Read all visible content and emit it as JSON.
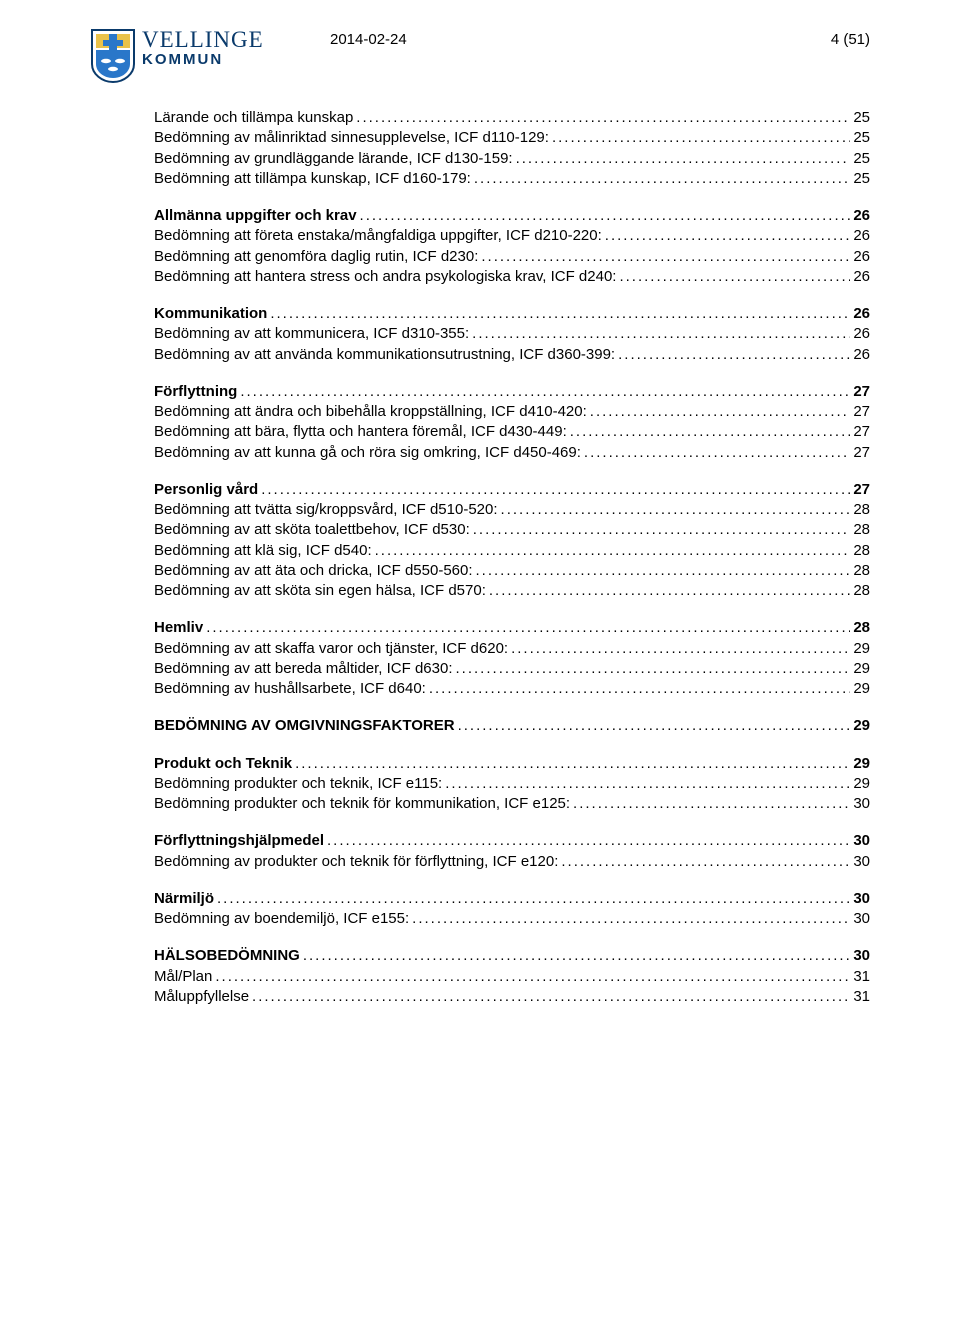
{
  "header": {
    "date": "2014-02-24",
    "page_label": "4 (51)",
    "logo": {
      "vellinge": "VELLINGE",
      "kommun": "KOMMUN"
    }
  },
  "colors": {
    "logo_text": "#0a3a6b",
    "shield_outline": "#0a3a6b",
    "shield_white": "#ffffff",
    "shield_blue": "#2a77c9",
    "shield_yellow": "#e9c24a"
  },
  "toc": [
    {
      "group": [
        {
          "label": "Lärande och tillämpa kunskap",
          "page": "25",
          "bold": false
        },
        {
          "label": "Bedömning av målinriktad sinnesupplevelse, ICF d110-129:",
          "page": "25",
          "bold": false
        },
        {
          "label": "Bedömning av grundläggande lärande, ICF d130-159:",
          "page": "25",
          "bold": false
        },
        {
          "label": "Bedömning att tillämpa kunskap, ICF d160-179:",
          "page": "25",
          "bold": false
        }
      ]
    },
    {
      "group": [
        {
          "label": "Allmänna uppgifter och krav",
          "page": "26",
          "bold": true
        },
        {
          "label": "Bedömning att företa enstaka/mångfaldiga uppgifter, ICF d210-220:",
          "page": "26",
          "bold": false
        },
        {
          "label": "Bedömning att genomföra daglig rutin, ICF d230:",
          "page": "26",
          "bold": false
        },
        {
          "label": "Bedömning att hantera stress och andra psykologiska krav, ICF d240:",
          "page": "26",
          "bold": false
        }
      ]
    },
    {
      "group": [
        {
          "label": "Kommunikation",
          "page": "26",
          "bold": true
        },
        {
          "label": "Bedömning av att kommunicera, ICF d310-355:",
          "page": "26",
          "bold": false
        },
        {
          "label": "Bedömning av att använda kommunikationsutrustning, ICF d360-399:",
          "page": "26",
          "bold": false
        }
      ]
    },
    {
      "group": [
        {
          "label": "Förflyttning",
          "page": "27",
          "bold": true
        },
        {
          "label": "Bedömning att ändra och bibehålla kroppställning, ICF d410-420:",
          "page": "27",
          "bold": false
        },
        {
          "label": "Bedömning att bära, flytta och hantera föremål, ICF d430-449:",
          "page": "27",
          "bold": false
        },
        {
          "label": "Bedömning av att kunna gå och röra sig omkring, ICF d450-469:",
          "page": "27",
          "bold": false
        }
      ]
    },
    {
      "group": [
        {
          "label": "Personlig vård",
          "page": "27",
          "bold": true
        },
        {
          "label": "Bedömning att tvätta sig/kroppsvård, ICF d510-520:",
          "page": "28",
          "bold": false
        },
        {
          "label": "Bedömning av att sköta toalettbehov, ICF d530:",
          "page": "28",
          "bold": false
        },
        {
          "label": "Bedömning att klä sig, ICF d540:",
          "page": "28",
          "bold": false
        },
        {
          "label": "Bedömning av att äta och dricka, ICF d550-560:",
          "page": "28",
          "bold": false
        },
        {
          "label": "Bedömning av att sköta sin egen hälsa, ICF d570:",
          "page": "28",
          "bold": false
        }
      ]
    },
    {
      "group": [
        {
          "label": "Hemliv",
          "page": "28",
          "bold": true
        },
        {
          "label": "Bedömning av att skaffa varor och tjänster, ICF d620:",
          "page": "29",
          "bold": false
        },
        {
          "label": "Bedömning av att bereda måltider, ICF d630:",
          "page": "29",
          "bold": false
        },
        {
          "label": "Bedömning av hushållsarbete, ICF d640:",
          "page": "29",
          "bold": false
        }
      ]
    },
    {
      "group": [
        {
          "label": "BEDÖMNING AV OMGIVNINGSFAKTORER",
          "page": "29",
          "bold": true
        }
      ]
    },
    {
      "group": [
        {
          "label": "Produkt och Teknik",
          "page": "29",
          "bold": true
        },
        {
          "label": "Bedömning produkter och teknik, ICF e115:",
          "page": "29",
          "bold": false
        },
        {
          "label": "Bedömning produkter och teknik för kommunikation, ICF e125:",
          "page": "30",
          "bold": false
        }
      ]
    },
    {
      "group": [
        {
          "label": "Förflyttningshjälpmedel",
          "page": "30",
          "bold": true
        },
        {
          "label": "Bedömning av produkter och teknik för förflyttning, ICF e120:",
          "page": "30",
          "bold": false
        }
      ]
    },
    {
      "group": [
        {
          "label": "Närmiljö",
          "page": "30",
          "bold": true
        },
        {
          "label": "Bedömning av boendemiljö, ICF e155:",
          "page": "30",
          "bold": false
        }
      ]
    },
    {
      "group": [
        {
          "label": "HÄLSOBEDÖMNING",
          "page": "30",
          "bold": true
        },
        {
          "label": "Mål/Plan",
          "page": "31",
          "bold": false
        },
        {
          "label": "Måluppfyllelse",
          "page": "31",
          "bold": false
        }
      ]
    }
  ]
}
